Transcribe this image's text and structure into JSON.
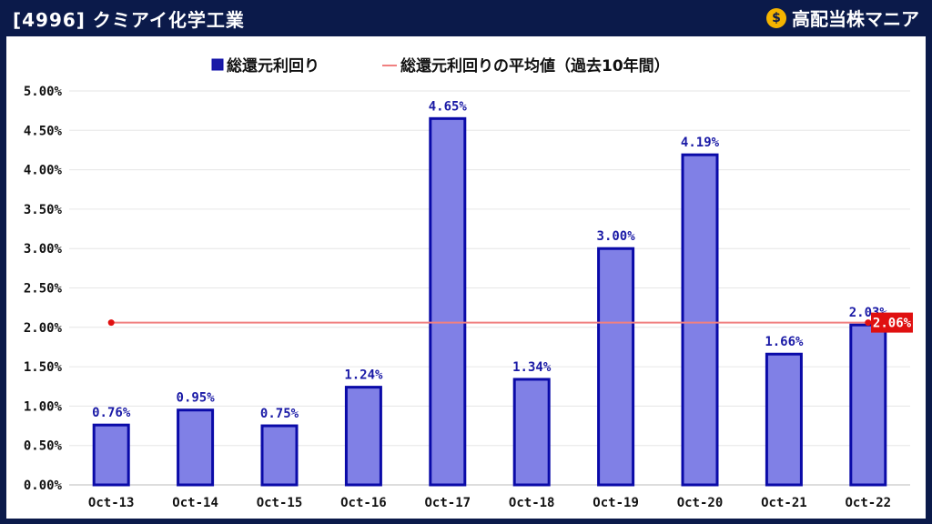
{
  "header": {
    "title": "[4996] クミアイ化学工業",
    "brand": "高配当株マニア",
    "brand_icon": "money-bag-icon"
  },
  "chart_data": {
    "type": "bar",
    "categories": [
      "Oct-13",
      "Oct-14",
      "Oct-15",
      "Oct-16",
      "Oct-17",
      "Oct-18",
      "Oct-19",
      "Oct-20",
      "Oct-21",
      "Oct-22"
    ],
    "series": [
      {
        "name": "総還元利回り",
        "type": "bar",
        "values": [
          0.76,
          0.95,
          0.75,
          1.24,
          4.65,
          1.34,
          3.0,
          4.19,
          1.66,
          2.03
        ],
        "labels": [
          "0.76%",
          "0.95%",
          "0.75%",
          "1.24%",
          "4.65%",
          "1.34%",
          "3.00%",
          "4.19%",
          "1.66%",
          "2.03%"
        ]
      },
      {
        "name": "総還元利回りの平均値（過去10年間）",
        "type": "line",
        "value": 2.06,
        "label": "2.06%"
      }
    ],
    "ylim": [
      0,
      5
    ],
    "yticks": [
      "0.00%",
      "0.50%",
      "1.00%",
      "1.50%",
      "2.00%",
      "2.50%",
      "3.00%",
      "3.50%",
      "4.00%",
      "4.50%",
      "5.00%"
    ],
    "grid": true,
    "legend": "top-center",
    "colors": {
      "bar_fill": "#8080e6",
      "bar_stroke": "#0a0aa8",
      "avg_line": "#f08080",
      "avg_point": "#e01010",
      "avg_label_bg": "#e01010",
      "value_label": "#1a1aa6"
    }
  }
}
